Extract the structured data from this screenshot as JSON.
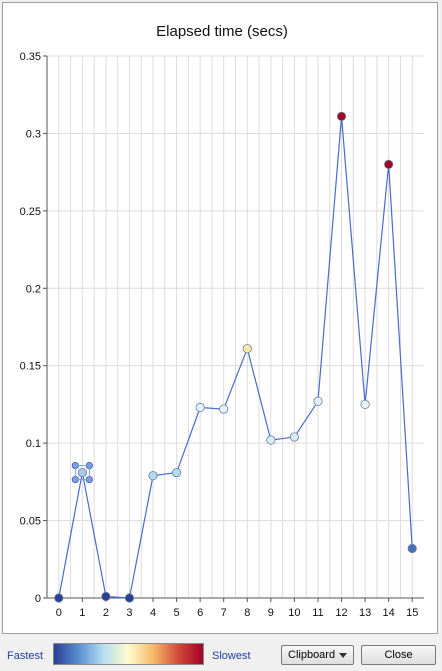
{
  "window": {
    "legend": {
      "fastest_label": "Fastest",
      "slowest_label": "Slowest"
    },
    "buttons": {
      "clipboard_label": "Clipboard",
      "close_label": "Close"
    },
    "gradient_colors": [
      "#2b3f95",
      "#5b8fd0",
      "#b6dff0",
      "#fffbcc",
      "#f6b96a",
      "#d24a3a",
      "#a50026"
    ]
  },
  "chart_data": {
    "type": "line",
    "title": "Elapsed time (secs)",
    "xlabel": "",
    "ylabel": "",
    "x": [
      0,
      1,
      2,
      3,
      4,
      5,
      6,
      7,
      8,
      9,
      10,
      11,
      12,
      13,
      14,
      15
    ],
    "series": [
      {
        "values": [
          0.0,
          0.081,
          0.001,
          0.0,
          0.079,
          0.081,
          0.123,
          0.122,
          0.161,
          0.102,
          0.104,
          0.127,
          0.311,
          0.125,
          0.28,
          0.032
        ],
        "point_colors": [
          "#2b3f95",
          "#a9c9ea",
          "#2b3f95",
          "#2b3f95",
          "#b2daf0",
          "#b2daf0",
          "#e4f3fb",
          "#e4f3fb",
          "#fde9a4",
          "#d6ecf8",
          "#d6ecf8",
          "#e4f3fb",
          "#a50026",
          "#eaf5fb",
          "#a50026",
          "#4a6fbe"
        ],
        "line_color": "#4a6cc9"
      }
    ],
    "selected_index": 1,
    "x_ticks": [
      "0",
      "1",
      "2",
      "3",
      "4",
      "5",
      "6",
      "7",
      "8",
      "9",
      "10",
      "11",
      "12",
      "13",
      "14",
      "15"
    ],
    "y_ticks": [
      "0",
      "0.05",
      "0.1",
      "0.15",
      "0.2",
      "0.25",
      "0.3",
      "0.35"
    ],
    "ylim": [
      0,
      0.35
    ],
    "xlim": [
      -0.5,
      15.5
    ],
    "grid": true
  }
}
